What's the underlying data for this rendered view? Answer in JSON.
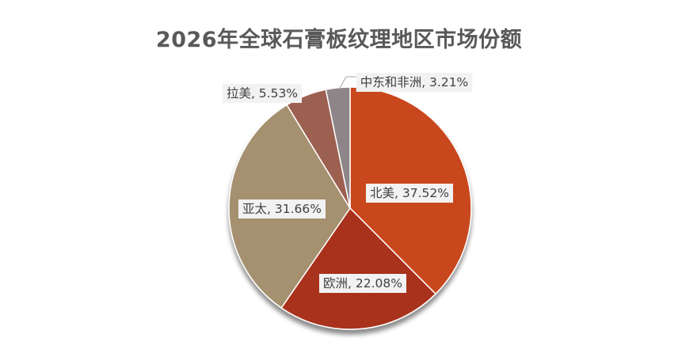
{
  "chart_data": {
    "type": "pie",
    "title": "2026年全球石膏板纹理地区市场份额",
    "slices": [
      {
        "name": "北美",
        "value": 37.52,
        "label": "北美, 37.52%",
        "color": "#c9471c"
      },
      {
        "name": "欧洲",
        "value": 22.08,
        "label": "欧洲, 22.08%",
        "color": "#a8321f"
      },
      {
        "name": "亚太",
        "value": 31.66,
        "label": "亚太, 31.66%",
        "color": "#a59170"
      },
      {
        "name": "拉美",
        "value": 5.53,
        "label": "拉美, 5.53%",
        "color": "#9c6051"
      },
      {
        "name": "中东和非洲",
        "value": 3.21,
        "label": "中东和非洲, 3.21%",
        "color": "#8d8588"
      }
    ],
    "start_angle_deg": 0,
    "direction": "clockwise",
    "legend": "none"
  }
}
